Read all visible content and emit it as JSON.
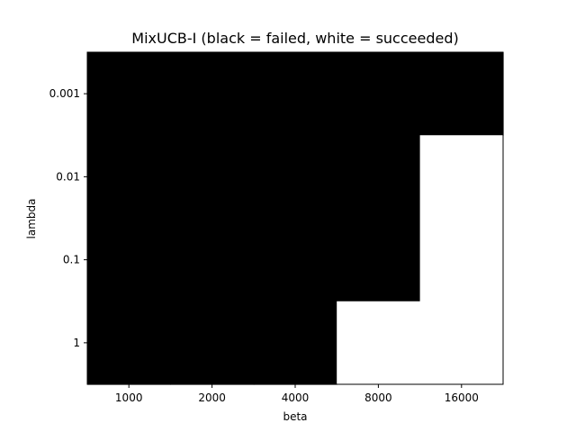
{
  "chart_data": {
    "type": "heatmap",
    "title": "MixUCB-I (black = failed, white = succeeded)",
    "xlabel": "beta",
    "ylabel": "lambda",
    "x_categories": [
      "1000",
      "2000",
      "4000",
      "8000",
      "16000"
    ],
    "y_categories": [
      "0.001",
      "0.01",
      "0.1",
      "1"
    ],
    "values": [
      [
        0,
        0,
        0,
        0,
        0
      ],
      [
        0,
        0,
        0,
        0,
        1
      ],
      [
        0,
        0,
        0,
        0,
        1
      ],
      [
        0,
        0,
        0,
        1,
        1
      ]
    ],
    "value_meaning": {
      "0": "failed",
      "1": "succeeded"
    },
    "colors": {
      "failed": "#000000",
      "succeeded": "#ffffff",
      "frame": "#000000"
    },
    "grid": false,
    "legend": "none"
  }
}
